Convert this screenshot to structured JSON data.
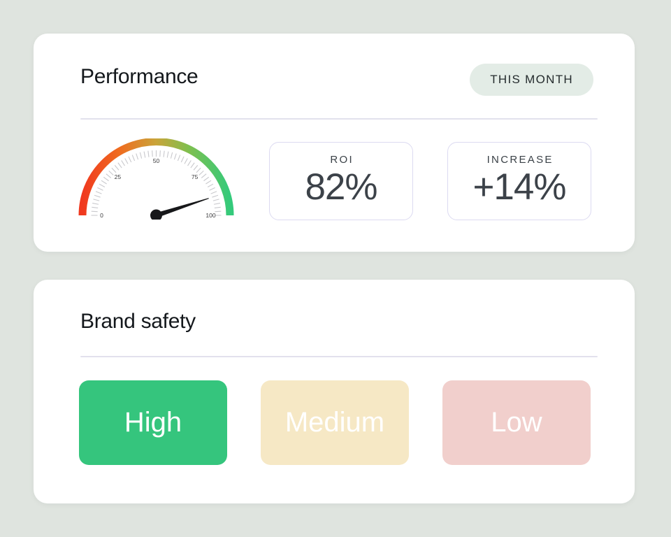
{
  "page": {
    "background": "#dfe4df"
  },
  "performance_card": {
    "title": "Performance",
    "badge": "THIS MONTH",
    "stats": [
      {
        "label": "ROI",
        "value": "82%"
      },
      {
        "label": "INCREASE",
        "value": "+14%"
      }
    ]
  },
  "chart_data": {
    "type": "gauge",
    "min": 0,
    "max": 100,
    "tick_labels": [
      0,
      25,
      50,
      75,
      100
    ],
    "minor_tick_step": 2,
    "value": 90,
    "arc_gradient": [
      "#f0391f",
      "#ef6c1f",
      "#c9a43a",
      "#7fbf4e",
      "#34ca7b"
    ],
    "gradient_stops": [
      0,
      0.25,
      0.5,
      0.72,
      1
    ],
    "needle_color": "#17181a",
    "tick_color": "#c9c9cd",
    "label_color": "#3c3c3e"
  },
  "brand_safety_card": {
    "title": "Brand safety",
    "levels": [
      {
        "label": "High",
        "color": "#35c57d",
        "text_color": "#ffffff"
      },
      {
        "label": "Medium",
        "color": "#f6e8c5",
        "text_color": "#ffffff"
      },
      {
        "label": "Low",
        "color": "#f1cfcc",
        "text_color": "#ffffff"
      }
    ]
  }
}
